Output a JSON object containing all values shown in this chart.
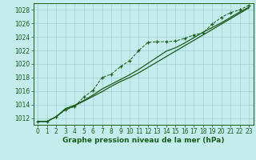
{
  "x": [
    0,
    1,
    2,
    3,
    4,
    5,
    6,
    7,
    8,
    9,
    10,
    11,
    12,
    13,
    14,
    15,
    16,
    17,
    18,
    19,
    20,
    21,
    22,
    23
  ],
  "line1": [
    1011.5,
    1011.5,
    1012.2,
    1013.4,
    1013.9,
    1014.6,
    1015.4,
    1016.3,
    1017.0,
    1017.7,
    1018.4,
    1019.2,
    1020.1,
    1021.0,
    1021.9,
    1022.4,
    1023.1,
    1023.9,
    1024.7,
    1025.4,
    1026.1,
    1026.9,
    1027.7,
    1028.4
  ],
  "line2": [
    1011.5,
    1011.5,
    1012.2,
    1013.3,
    1013.8,
    1014.5,
    1015.2,
    1015.9,
    1016.7,
    1017.4,
    1018.0,
    1018.7,
    1019.5,
    1020.3,
    1021.1,
    1021.9,
    1022.7,
    1023.5,
    1024.3,
    1025.1,
    1025.9,
    1026.7,
    1027.5,
    1028.3
  ],
  "line3": [
    1011.5,
    1011.5,
    1012.2,
    1013.2,
    1013.7,
    1015.1,
    1016.1,
    1018.0,
    1018.5,
    1019.6,
    1020.5,
    1022.0,
    1023.2,
    1023.3,
    1023.3,
    1023.4,
    1023.8,
    1024.3,
    1024.6,
    1025.9,
    1026.9,
    1027.6,
    1028.0,
    1028.7
  ],
  "bg_color": "#c5eced",
  "grid_color": "#9ecfd4",
  "line_color": "#1a5c1a",
  "xlabel": "Graphe pression niveau de la mer (hPa)",
  "ylim": [
    1011.0,
    1029.0
  ],
  "xlim": [
    -0.5,
    23.5
  ],
  "yticks": [
    1012,
    1014,
    1016,
    1018,
    1020,
    1022,
    1024,
    1026,
    1028
  ],
  "xticks": [
    0,
    1,
    2,
    3,
    4,
    5,
    6,
    7,
    8,
    9,
    10,
    11,
    12,
    13,
    14,
    15,
    16,
    17,
    18,
    19,
    20,
    21,
    22,
    23
  ],
  "tick_fontsize": 5.5,
  "xlabel_fontsize": 6.5
}
